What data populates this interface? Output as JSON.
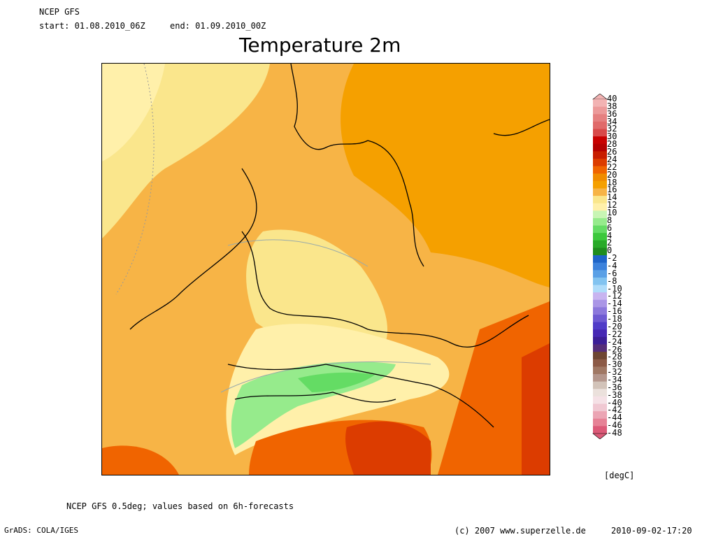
{
  "header": {
    "model": "NCEP GFS",
    "start_label": "start: 01.08.2010_06Z",
    "end_label": "end: 01.09.2010_00Z"
  },
  "title": "Temperature 2m",
  "legend": {
    "labels": [
      "40",
      "38",
      "36",
      "34",
      "32",
      "30",
      "28",
      "26",
      "24",
      "22",
      "20",
      "18",
      "16",
      "14",
      "12",
      "10",
      "8",
      "6",
      "4",
      "2",
      "0",
      "-2",
      "-4",
      "-6",
      "-8",
      "-10",
      "-12",
      "-14",
      "-16",
      "-18",
      "-20",
      "-22",
      "-24",
      "-26",
      "-28",
      "-30",
      "-32",
      "-34",
      "-36",
      "-38",
      "-40",
      "-42",
      "-44",
      "-46",
      "-48"
    ],
    "colors": [
      "#f2b3b3",
      "#ec9a9a",
      "#e58080",
      "#e06a6a",
      "#d84a4a",
      "#c80000",
      "#b40000",
      "#c81e00",
      "#dc3c00",
      "#f06400",
      "#f08c00",
      "#f5a000",
      "#f7b446",
      "#fae68c",
      "#fff0aa",
      "#c8f5b4",
      "#96eb8c",
      "#64dc64",
      "#3cc83c",
      "#28aa28",
      "#1e8c1e",
      "#1e64c8",
      "#3c82dc",
      "#5aa0e6",
      "#82c3f0",
      "#afdcfa",
      "#c8b4f0",
      "#aa96e6",
      "#8c78dc",
      "#6e5ad2",
      "#503cc8",
      "#4628b4",
      "#3c1e96",
      "#552d78",
      "#6e4632",
      "#8c5a46",
      "#a07864",
      "#b4968c",
      "#d2c3b9",
      "#ebe1dc",
      "#f5e1e6",
      "#f0c8d2",
      "#eba5b4",
      "#e68296",
      "#dc5a78"
    ],
    "unit": "[degC]"
  },
  "footer": {
    "note": "NCEP GFS 0.5deg; values based on 6h-forecasts",
    "grads": "GrADS: COLA/IGES",
    "copyright": "(c) 2007 www.superzelle.de",
    "timestamp": "2010-09-02-17:20"
  }
}
